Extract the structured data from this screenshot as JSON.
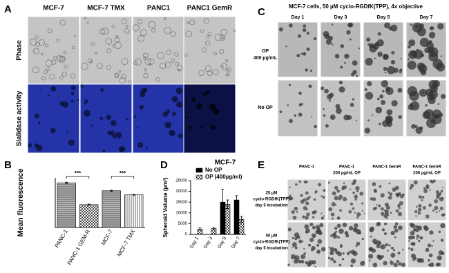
{
  "panel_labels": [
    "A",
    "B",
    "C",
    "D",
    "E"
  ],
  "panel_a": {
    "columns": [
      "MCF-7",
      "MCF-7 TMX",
      "PANC1",
      "PANC1 GemR"
    ],
    "rows": [
      "Phase",
      "Sialidase activity"
    ]
  },
  "panel_c": {
    "title": "MCF-7 cells, 50 µM cyclo-RGDfK(TPP), 4x objective",
    "columns": [
      "Day 1",
      "Day 3",
      "Day 5",
      "Day 7"
    ],
    "rows": [
      [
        "OP",
        "400 µg/mL"
      ],
      [
        "No OP"
      ]
    ]
  },
  "panel_e": {
    "columns": [
      [
        "PANC-1"
      ],
      [
        "PANC-1",
        "200 µg/mL OP"
      ],
      [
        "PANC-1 GemR"
      ],
      [
        "PANC-1 GemR",
        "200 µg/mL OP"
      ]
    ],
    "rows": [
      [
        "25 µM",
        "cyclo-RGDfK(TPP)",
        "day 5 incubation"
      ],
      [
        "50 µM",
        "cyclo-RGDfK(TPP)",
        "day 5 incubation"
      ]
    ]
  },
  "chart_data": [
    {
      "type": "bar",
      "y_label": "Mean fluorescence",
      "categories": [
        "PANC-1",
        "PANC-1 GEM-R",
        "MCF-7",
        "MCF-7 TMX"
      ],
      "values": [
        225,
        115,
        185,
        165
      ],
      "errors": [
        3,
        3,
        3,
        2
      ],
      "color": "#777777",
      "patterns": [
        "hlines",
        "checker",
        "hlines",
        "vlines"
      ],
      "ylim": [
        0,
        250
      ],
      "annotations": [
        "***",
        "***"
      ]
    },
    {
      "type": "bar",
      "title": "MCF-7",
      "y_label": "Spheroid Volume (µm³)",
      "categories": [
        "Day 1",
        "Day 3",
        "Day 5",
        "Day 7"
      ],
      "series": [
        {
          "name": "No OP",
          "color": "#000000",
          "pattern": "solid",
          "values": [
            null,
            null,
            15000,
            16000
          ],
          "errors": [
            null,
            null,
            6000,
            2000
          ]
        },
        {
          "name": "OP (400µg/ml)",
          "color": "#000000",
          "pattern": "checker",
          "values": [
            2500,
            2700,
            14000,
            7000
          ],
          "errors": [
            500,
            500,
            2000,
            1500
          ]
        }
      ],
      "ylim": [
        0,
        25000
      ],
      "yticks": [
        0,
        5000,
        10000,
        15000,
        20000,
        25000
      ],
      "legend": "upper-left"
    }
  ]
}
